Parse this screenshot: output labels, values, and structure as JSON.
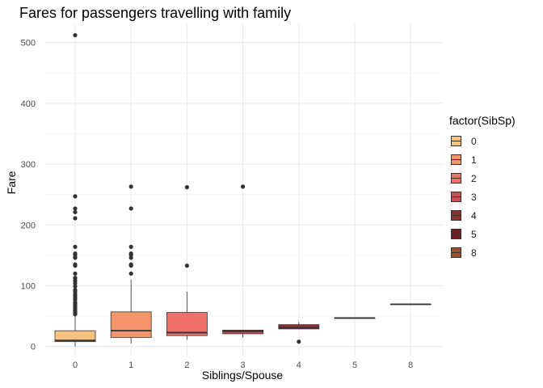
{
  "chart_data": {
    "type": "boxplot",
    "title": "Fares for passengers travelling with family",
    "xlabel": "Siblings/Spouse",
    "ylabel": "Fare",
    "ylim": [
      -15,
      530
    ],
    "yticks": [
      0,
      100,
      200,
      300,
      400,
      500
    ],
    "grid": true,
    "legend": {
      "title": "factor(SibSp)",
      "position": "right",
      "entries": [
        "0",
        "1",
        "2",
        "3",
        "4",
        "5",
        "8"
      ]
    },
    "categories": [
      "0",
      "1",
      "2",
      "3",
      "4",
      "5",
      "8"
    ],
    "boxes": [
      {
        "category": "0",
        "whisker_low": 0,
        "q1": 8,
        "median": 10,
        "q3": 26,
        "whisker_high": 51,
        "color": "#F7C27D",
        "outliers": [
          53,
          55,
          57,
          59,
          61,
          63,
          66,
          69,
          71,
          73,
          77,
          80,
          83,
          86,
          90,
          93,
          99,
          104,
          108,
          112,
          113,
          120,
          133,
          135,
          146,
          147,
          151,
          153,
          164,
          211,
          221,
          227,
          247,
          512
        ]
      },
      {
        "category": "1",
        "whisker_low": 5,
        "q1": 15,
        "median": 26,
        "q3": 57,
        "whisker_high": 110,
        "color": "#F4956B",
        "outliers": [
          120,
          133,
          135,
          146,
          151,
          153,
          164,
          227,
          263
        ]
      },
      {
        "category": "2",
        "whisker_low": 11,
        "q1": 18,
        "median": 23,
        "q3": 56,
        "whisker_high": 90,
        "color": "#F0706A",
        "outliers": [
          133,
          262
        ]
      },
      {
        "category": "3",
        "whisker_low": 15,
        "q1": 21,
        "median": 25,
        "q3": 27,
        "whisker_high": 27,
        "color": "#C85050",
        "outliers": [
          263
        ]
      },
      {
        "category": "4",
        "whisker_low": 29,
        "q1": 29,
        "median": 31,
        "q3": 36,
        "whisker_high": 40,
        "color": "#922E30",
        "outliers": [
          8
        ]
      },
      {
        "category": "5",
        "whisker_low": 46.9,
        "q1": 46.9,
        "median": 46.9,
        "q3": 46.9,
        "whisker_high": 46.9,
        "color": "#6E2020",
        "outliers": []
      },
      {
        "category": "8",
        "whisker_low": 69.55,
        "q1": 69.55,
        "median": 69.55,
        "q3": 69.55,
        "whisker_high": 69.55,
        "color": "#9C4F2E",
        "outliers": []
      }
    ]
  }
}
